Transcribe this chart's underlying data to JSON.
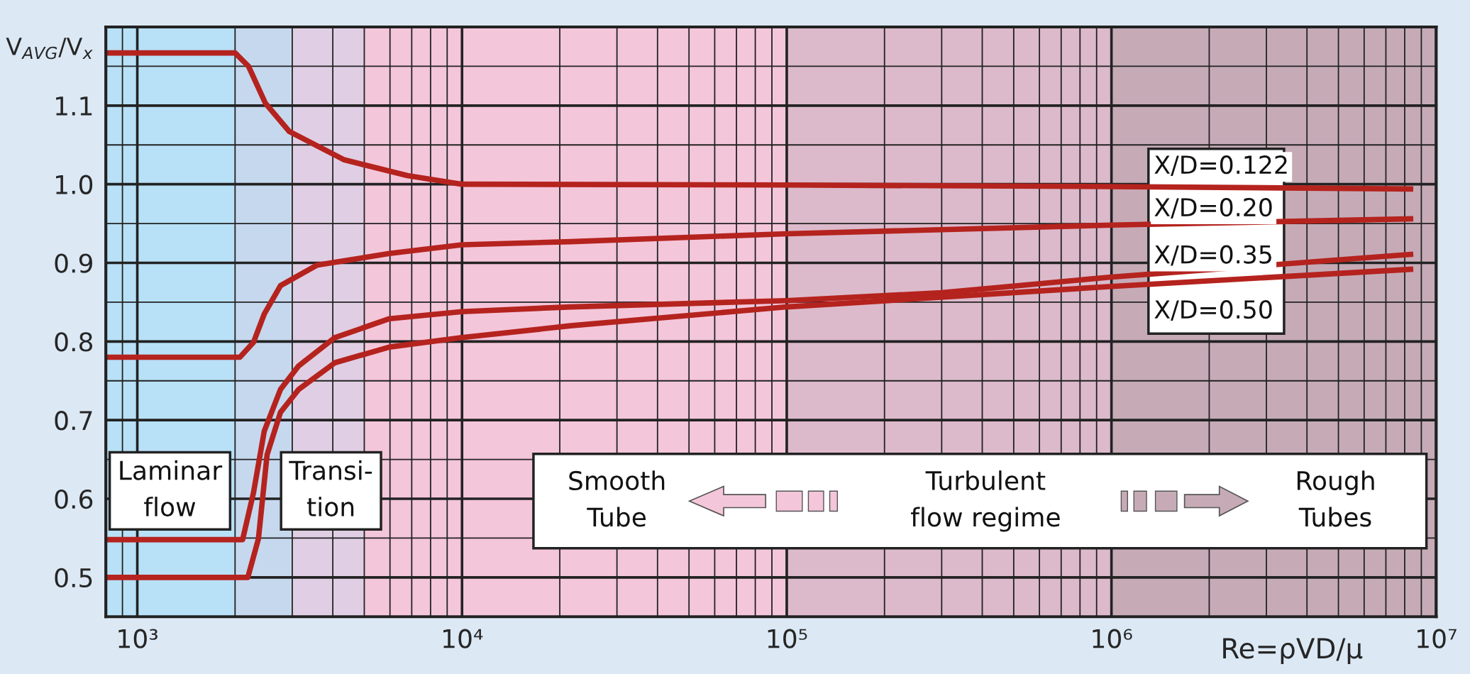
{
  "chart_data": {
    "type": "line",
    "xlabel": "Re=ρVD/μ",
    "ylabel": "V$_{AVG}$/V$_{x}$",
    "log": "x",
    "xlim": [
      800,
      10000000
    ],
    "ylim": [
      0.45,
      1.2
    ],
    "xticks": [
      {
        "value": 1000,
        "label": "10³"
      },
      {
        "value": 10000,
        "label": "10⁴"
      },
      {
        "value": 100000,
        "label": "10⁵"
      },
      {
        "value": 1000000,
        "label": "10⁶"
      },
      {
        "value": 10000000,
        "label": "10⁷"
      }
    ],
    "yticks": [
      0.5,
      0.6,
      0.7,
      0.8,
      0.9,
      {
        "value": 1.0,
        "label": "1.0"
      },
      1.1
    ],
    "grid": true,
    "legend": false,
    "marker": "none",
    "line_style": "solid",
    "bands": [
      {
        "axis": "x",
        "from": 800,
        "to": 2000,
        "color": "#b8e0f6"
      },
      {
        "axis": "x",
        "from": 2000,
        "to": 3000,
        "color": "#c6d8ee"
      },
      {
        "axis": "x",
        "from": 3000,
        "to": 5000,
        "color": "#e0cfe4"
      },
      {
        "axis": "x",
        "from": 5000,
        "to": 100000,
        "color": "#f4c6da"
      },
      {
        "axis": "x",
        "from": 100000,
        "to": 1000000,
        "color": "#dcbacb"
      },
      {
        "axis": "x",
        "from": 1000000,
        "to": 10000000,
        "color": "#c6abb7"
      }
    ],
    "annotations": [
      "Laminar\nflow",
      "Transi-\ntion",
      "Smooth\nTube",
      "Turbulent\nflow regime",
      "Rough\nTubes"
    ],
    "series": [
      {
        "name": "X/D=0.122",
        "color": "#b5231e",
        "x": [
          800,
          2000,
          2200,
          2480,
          2940,
          4340,
          6790,
          10000,
          100000,
          1000000,
          8500000
        ],
        "values": [
          1.167,
          1.167,
          1.15,
          1.103,
          1.067,
          1.031,
          1.011,
          1.0,
          0.999,
          0.997,
          0.994
        ]
      },
      {
        "name": "X/D=0.20",
        "color": "#b5231e",
        "x": [
          800,
          2070,
          2280,
          2460,
          2760,
          3570,
          5980,
          10000,
          21600,
          100000,
          1000000,
          8500000
        ],
        "values": [
          0.78,
          0.78,
          0.799,
          0.835,
          0.871,
          0.897,
          0.912,
          0.923,
          0.927,
          0.937,
          0.948,
          0.956
        ]
      },
      {
        "name": "X/D=0.35",
        "color": "#b5231e",
        "x": [
          800,
          2110,
          2280,
          2460,
          2760,
          3140,
          4060,
          5980,
          10000,
          21600,
          100000,
          300000,
          1000000,
          8500000
        ],
        "values": [
          0.548,
          0.548,
          0.608,
          0.686,
          0.739,
          0.769,
          0.805,
          0.829,
          0.838,
          0.844,
          0.852,
          0.862,
          0.882,
          0.911
        ]
      },
      {
        "name": "X/D=0.50",
        "color": "#b5231e",
        "x": [
          800,
          2190,
          2360,
          2510,
          2760,
          3140,
          4060,
          5980,
          10000,
          21600,
          100000,
          1000000,
          8500000
        ],
        "values": [
          0.5,
          0.5,
          0.549,
          0.656,
          0.71,
          0.739,
          0.773,
          0.793,
          0.805,
          0.82,
          0.844,
          0.87,
          0.892
        ]
      }
    ]
  }
}
